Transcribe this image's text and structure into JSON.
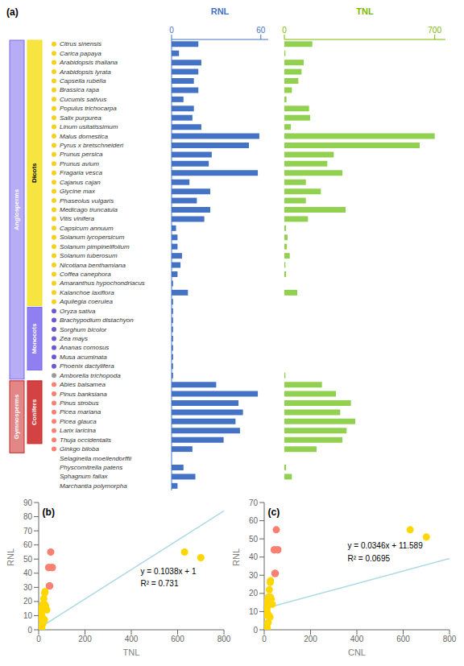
{
  "chart_data": [
    {
      "type": "bar",
      "orientation": "horizontal",
      "title": "RNL",
      "annotations": [
        "(a)"
      ],
      "categories": [
        "Citrus sinensis",
        "Carica papaya",
        "Arabidopsis thaliana",
        "Arabidopsis lyrata",
        "Capsella rubella",
        "Brassica rapa",
        "Cucumis sativus",
        "Populus trichocarpa",
        "Salix purpurea",
        "Linum usitatissimum",
        "Malus domestica",
        "Pyrus x bretschneideri",
        "Prunus persica",
        "Prunus avium",
        "Fragaria vesca",
        "Cajanus cajan",
        "Glycine max",
        "Phaseolus vulgaris",
        "Medicago truncatula",
        "Vitis vinifera",
        "Capsicum annuum",
        "Solanum lycopersicum",
        "Solanum pimpinelifolium",
        "Solanum tuberosum",
        "Nicotiana benthamiana",
        "Coffea canephora",
        "Amaranthus hypochondriacus",
        "Kalanchoe laxiflora",
        "Aquilegia coerulea",
        "Oryza sativa",
        "Brachypodium distachyon",
        "Sorghum bicolor",
        "Zea mays",
        "Ananas comosus",
        "Musa acuminata",
        "Phoenix dactylifera",
        "Amborella trichopoda",
        "Abies balsamea",
        "Pinus banksiana",
        "Pinus strobus",
        "Picea mariana",
        "Picea glauca",
        "Larix laricina",
        "Thuja occidentalis",
        "Ginkgo biloba",
        "Selaginella moellendorffii",
        "Physcomitrella patens",
        "Sphagnum fallax",
        "Marchantia polymorpha"
      ],
      "values": [
        18,
        5,
        20,
        18,
        15,
        18,
        8,
        15,
        14,
        20,
        59,
        52,
        27,
        25,
        58,
        12,
        26,
        17,
        26,
        22,
        3,
        4,
        4,
        7,
        6,
        4,
        1,
        11,
        1,
        1,
        1,
        1,
        1,
        1,
        1,
        1,
        1,
        30,
        58,
        45,
        48,
        43,
        46,
        35,
        14,
        0,
        8,
        16,
        4
      ],
      "color": "#4472C4",
      "label_color": "#4472C4",
      "xlim": [
        0,
        65
      ],
      "xticks": [
        0,
        60
      ],
      "grid": false,
      "category_colors": [
        "#F5D020",
        "#F5D020",
        "#F5D020",
        "#F5D020",
        "#F5D020",
        "#F5D020",
        "#F5D020",
        "#F5D020",
        "#F5D020",
        "#F5D020",
        "#F5D020",
        "#F5D020",
        "#F5D020",
        "#F5D020",
        "#F5D020",
        "#F5D020",
        "#F5D020",
        "#F5D020",
        "#F5D020",
        "#F5D020",
        "#F5D020",
        "#F5D020",
        "#F5D020",
        "#F5D020",
        "#F5D020",
        "#F5D020",
        "#F5D020",
        "#F5D020",
        "#F5D020",
        "#6A5ACD",
        "#6A5ACD",
        "#6A5ACD",
        "#6A5ACD",
        "#6A5ACD",
        "#6A5ACD",
        "#6A5ACD",
        "#999999",
        "#FA8072",
        "#FA8072",
        "#FA8072",
        "#FA8072",
        "#FA8072",
        "#FA8072",
        "#FA8072",
        "#FA8072",
        null,
        null,
        null,
        null
      ],
      "groups": [
        {
          "name": "Dicots",
          "from": "Citrus sinensis",
          "to": "Aquilegia coerulea",
          "color": "#F5E020"
        },
        {
          "name": "Monocots",
          "from": "Oryza sativa",
          "to": "Phoenix dactylifera",
          "color": "#7B68EE"
        },
        {
          "name": "Angiosperms",
          "from": "Citrus sinensis",
          "to": "Amborella trichopoda",
          "color": "#7B68EE"
        },
        {
          "name": "Conifers",
          "from": "Abies balsamea",
          "to": "Thuja occidentalis",
          "color": "#CC2222"
        },
        {
          "name": "Gymnosperms",
          "from": "Abies balsamea",
          "to": "Ginkgo biloba",
          "color": "#CC2222"
        }
      ]
    },
    {
      "type": "bar",
      "orientation": "horizontal",
      "title": "TNL",
      "tick_labels": "x",
      "categories": [
        "Citrus sinensis",
        "Carica papaya",
        "Arabidopsis thaliana",
        "Arabidopsis lyrata",
        "Capsella rubella",
        "Brassica rapa",
        "Cucumis sativus",
        "Populus trichocarpa",
        "Salix purpurea",
        "Linum usitatissimum",
        "Malus domestica",
        "Pyrus x bretschneideri",
        "Prunus persica",
        "Prunus avium",
        "Fragaria vesca",
        "Cajanus cajan",
        "Glycine max",
        "Phaseolus vulgaris",
        "Medicago truncatula",
        "Vitis vinifera",
        "Capsicum annuum",
        "Solanum lycopersicum",
        "Solanum pimpinelifolium",
        "Solanum tuberosum",
        "Nicotiana benthamiana",
        "Coffea canephora",
        "Amaranthus hypochondriacus",
        "Kalanchoe laxiflora",
        "Aquilegia coerulea",
        "Oryza sativa",
        "Brachypodium distachyon",
        "Sorghum bicolor",
        "Zea mays",
        "Ananas comosus",
        "Musa acuminata",
        "Phoenix dactylifera",
        "Amborella trichopoda",
        "Abies balsamea",
        "Pinus banksiana",
        "Pinus strobus",
        "Picea mariana",
        "Picea glauca",
        "Larix laricina",
        "Thuja occidentalis",
        "Ginkgo biloba",
        "Selaginella moellendorffii",
        "Physcomitrella patens",
        "Sphagnum fallax",
        "Marchantia polymorpha"
      ],
      "values": [
        130,
        5,
        90,
        80,
        65,
        35,
        10,
        115,
        120,
        30,
        700,
        630,
        230,
        200,
        270,
        100,
        170,
        100,
        285,
        110,
        8,
        15,
        12,
        25,
        5,
        8,
        0,
        60,
        0,
        0,
        0,
        0,
        0,
        0,
        0,
        0,
        5,
        175,
        240,
        310,
        260,
        330,
        290,
        270,
        150,
        0,
        8,
        35,
        0
      ],
      "color": "#92D050",
      "label_color": "#7DB700",
      "xlim": [
        0,
        750
      ],
      "xticks": [
        0,
        700
      ],
      "grid": false
    },
    {
      "type": "scatter",
      "annotations": [
        "(b)",
        "y = 0.1038x + 1",
        "R² = 0.731"
      ],
      "xlabel": "TNL",
      "ylabel": "RNL",
      "x": [
        0,
        5,
        5,
        8,
        10,
        10,
        12,
        12,
        12,
        13,
        15,
        15,
        17,
        18,
        20,
        20,
        22,
        25,
        26,
        26,
        27,
        30,
        35,
        43,
        45,
        46,
        48,
        52,
        58,
        59,
        630,
        700
      ],
      "values": [
        0,
        0,
        1,
        0,
        8,
        11,
        3,
        10,
        12,
        1,
        14,
        16,
        4,
        18,
        8,
        18,
        22,
        7,
        18,
        26,
        27,
        17,
        14,
        44,
        44,
        31,
        31,
        55,
        44,
        44,
        55,
        51
      ],
      "colors": [
        "gold",
        "gold",
        "gold",
        "gold",
        "gold",
        "gold",
        "gold",
        "gold",
        "gold",
        "gold",
        "gold",
        "gold",
        "gold",
        "gold",
        "gold",
        "gold",
        "gold",
        "gold",
        "gold",
        "gold",
        "gold",
        "gold",
        "gold",
        "salmon",
        "salmon",
        "salmon",
        "salmon",
        "salmon",
        "salmon",
        "salmon",
        "gold",
        "gold"
      ],
      "fit": {
        "x": [
          0,
          800
        ],
        "values": [
          1,
          84.04
        ],
        "color": "#ADD8E6"
      },
      "xlim": [
        0,
        800
      ],
      "xticks": [
        0,
        200,
        400,
        600,
        800
      ],
      "ylim": [
        0,
        90
      ],
      "yticks": [
        0,
        10,
        20,
        30,
        40,
        50,
        60,
        70,
        80,
        90
      ],
      "grid": false
    },
    {
      "type": "scatter",
      "annotations": [
        "(c)",
        "y = 0.0346x + 11.589",
        "R² = 0.0695"
      ],
      "xlabel": "CNL",
      "ylabel": "RNL",
      "x": [
        0,
        5,
        5,
        8,
        10,
        10,
        12,
        12,
        12,
        13,
        15,
        15,
        17,
        18,
        20,
        20,
        22,
        25,
        26,
        26,
        27,
        30,
        35,
        43,
        45,
        46,
        48,
        52,
        58,
        59,
        630,
        700
      ],
      "values": [
        0,
        0,
        1,
        0,
        8,
        11,
        3,
        10,
        12,
        1,
        14,
        16,
        4,
        18,
        8,
        18,
        22,
        7,
        18,
        26,
        27,
        17,
        14,
        44,
        44,
        31,
        31,
        55,
        44,
        44,
        55,
        51
      ],
      "colors": [
        "gold",
        "gold",
        "gold",
        "gold",
        "gold",
        "gold",
        "gold",
        "gold",
        "gold",
        "gold",
        "gold",
        "gold",
        "gold",
        "gold",
        "gold",
        "gold",
        "gold",
        "gold",
        "gold",
        "gold",
        "gold",
        "gold",
        "gold",
        "salmon",
        "salmon",
        "salmon",
        "salmon",
        "salmon",
        "salmon",
        "salmon",
        "gold",
        "gold"
      ],
      "fit": {
        "x": [
          0,
          800
        ],
        "values": [
          11.589,
          39.269
        ],
        "color": "#ADD8E6"
      },
      "xlim": [
        0,
        800
      ],
      "xticks": [
        0,
        200,
        400,
        600,
        800
      ],
      "ylim": [
        0,
        70
      ],
      "yticks": [
        0,
        10,
        20,
        30,
        40,
        50,
        60,
        70
      ],
      "grid": false
    }
  ]
}
